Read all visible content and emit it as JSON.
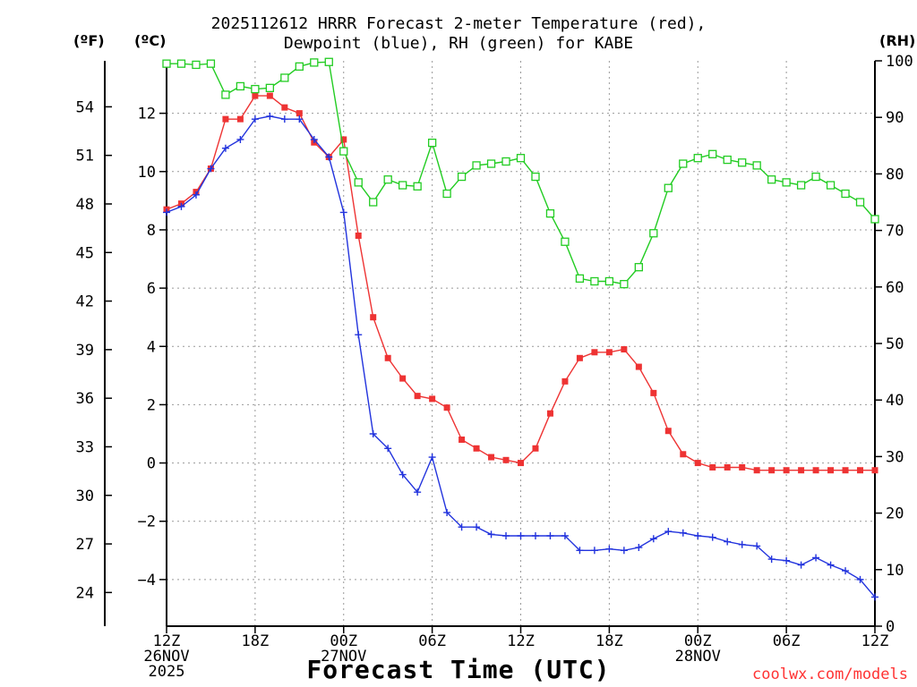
{
  "title_line1": "2025112612 HRRR Forecast 2-meter Temperature (red),",
  "title_line2": "Dewpoint (blue), RH (green) for KABE",
  "unit_f": "(ºF)",
  "unit_c": "(ºC)",
  "unit_rh": "(RH)",
  "xlabel": "Forecast Time (UTC)",
  "credit": "coolwx.com/models",
  "colors": {
    "temperature": "#ee3333",
    "dewpoint": "#2233dd",
    "rh": "#22cc22"
  },
  "chart_data": {
    "type": "line",
    "title": "2025112612 HRRR Forecast 2-meter Temperature (red), Dewpoint (blue), RH (green) for KABE",
    "xlabel": "Forecast Time (UTC)",
    "x_unit": "forecast hour",
    "xlim": [
      0,
      48
    ],
    "x_ticks": [
      {
        "hour": 0,
        "label": [
          "12Z",
          "26NOV",
          "2025"
        ]
      },
      {
        "hour": 6,
        "label": [
          "18Z"
        ]
      },
      {
        "hour": 12,
        "label": [
          "00Z",
          "27NOV"
        ]
      },
      {
        "hour": 18,
        "label": [
          "06Z"
        ]
      },
      {
        "hour": 24,
        "label": [
          "12Z"
        ]
      },
      {
        "hour": 30,
        "label": [
          "18Z"
        ]
      },
      {
        "hour": 36,
        "label": [
          "00Z",
          "28NOV"
        ]
      },
      {
        "hour": 42,
        "label": [
          "06Z"
        ]
      },
      {
        "hour": 48,
        "label": [
          "12Z"
        ]
      }
    ],
    "y_left_c": {
      "label": "(ºC)",
      "lim": [
        -5.6,
        13.8
      ],
      "ticks": [
        -4,
        -2,
        0,
        2,
        4,
        6,
        8,
        10,
        12
      ]
    },
    "y_left_f": {
      "label": "(ºF)",
      "ticks": [
        24,
        27,
        30,
        33,
        36,
        39,
        42,
        45,
        48,
        51,
        54
      ]
    },
    "y_right_rh": {
      "label": "(RH)",
      "lim": [
        0,
        100
      ],
      "ticks": [
        0,
        10,
        20,
        30,
        40,
        50,
        60,
        70,
        80,
        90,
        100
      ]
    },
    "grid": true,
    "series": [
      {
        "name": "Temperature",
        "axis": "c",
        "color": "#ee3333",
        "marker": "filled-square",
        "x": [
          0,
          1,
          2,
          3,
          4,
          5,
          6,
          7,
          8,
          9,
          10,
          11,
          12,
          13,
          14,
          15,
          16,
          17,
          18,
          19,
          20,
          21,
          22,
          23,
          24,
          25,
          26,
          27,
          28,
          29,
          30,
          31,
          32,
          33,
          34,
          35,
          36,
          37,
          38,
          39,
          40,
          41,
          42,
          43,
          44,
          45,
          46,
          47,
          48
        ],
        "y": [
          8.7,
          8.9,
          9.3,
          10.1,
          11.8,
          11.8,
          12.6,
          12.6,
          12.2,
          12.0,
          11.0,
          10.5,
          11.1,
          7.8,
          5.0,
          3.6,
          2.9,
          2.3,
          2.2,
          1.9,
          0.8,
          0.5,
          0.2,
          0.1,
          0.0,
          0.5,
          1.7,
          2.8,
          3.6,
          3.8,
          3.8,
          3.9,
          3.3,
          2.4,
          1.1,
          0.3,
          0.0,
          -0.15,
          -0.15,
          -0.15,
          -0.25,
          -0.25,
          -0.25,
          -0.25,
          -0.25,
          -0.25,
          -0.25,
          -0.25,
          -0.25
        ]
      },
      {
        "name": "Dewpoint",
        "axis": "c",
        "color": "#2233dd",
        "marker": "plus",
        "x": [
          0,
          1,
          2,
          3,
          4,
          5,
          6,
          7,
          8,
          9,
          10,
          11,
          12,
          13,
          14,
          15,
          16,
          17,
          18,
          19,
          20,
          21,
          22,
          23,
          24,
          25,
          26,
          27,
          28,
          29,
          30,
          31,
          32,
          33,
          34,
          35,
          36,
          37,
          38,
          39,
          40,
          41,
          42,
          43,
          44,
          45,
          46,
          47,
          48
        ],
        "y": [
          8.6,
          8.8,
          9.2,
          10.1,
          10.8,
          11.1,
          11.8,
          11.9,
          11.8,
          11.8,
          11.1,
          10.5,
          8.6,
          4.4,
          1.0,
          0.5,
          -0.4,
          -1.0,
          0.2,
          -1.7,
          -2.2,
          -2.2,
          -2.45,
          -2.5,
          -2.5,
          -2.5,
          -2.5,
          -2.5,
          -3.0,
          -3.0,
          -2.95,
          -3.0,
          -2.9,
          -2.6,
          -2.35,
          -2.4,
          -2.5,
          -2.55,
          -2.7,
          -2.8,
          -2.85,
          -3.3,
          -3.35,
          -3.5,
          -3.25,
          -3.5,
          -3.7,
          -4.0,
          -4.6
        ]
      },
      {
        "name": "RH",
        "axis": "rh",
        "color": "#22cc22",
        "marker": "open-square",
        "x": [
          0,
          1,
          2,
          3,
          4,
          5,
          6,
          7,
          8,
          9,
          10,
          11,
          12,
          13,
          14,
          15,
          16,
          17,
          18,
          19,
          20,
          21,
          22,
          23,
          24,
          25,
          26,
          27,
          28,
          29,
          30,
          31,
          32,
          33,
          34,
          35,
          36,
          37,
          38,
          39,
          40,
          41,
          42,
          43,
          44,
          45,
          46,
          47,
          48
        ],
        "y": [
          99.5,
          99.5,
          99.3,
          99.5,
          94,
          95.5,
          95,
          95.2,
          97,
          99,
          99.7,
          99.8,
          84,
          78.5,
          75,
          79,
          78,
          77.8,
          85.5,
          76.5,
          79.5,
          81.5,
          81.8,
          82.2,
          82.8,
          79.5,
          73,
          68,
          61.5,
          61,
          61,
          60.5,
          63.5,
          69.5,
          77.5,
          81.8,
          82.8,
          83.5,
          82.5,
          82,
          81.5,
          79,
          78.5,
          78,
          79.5,
          78,
          76.5,
          75,
          72
        ]
      }
    ]
  }
}
